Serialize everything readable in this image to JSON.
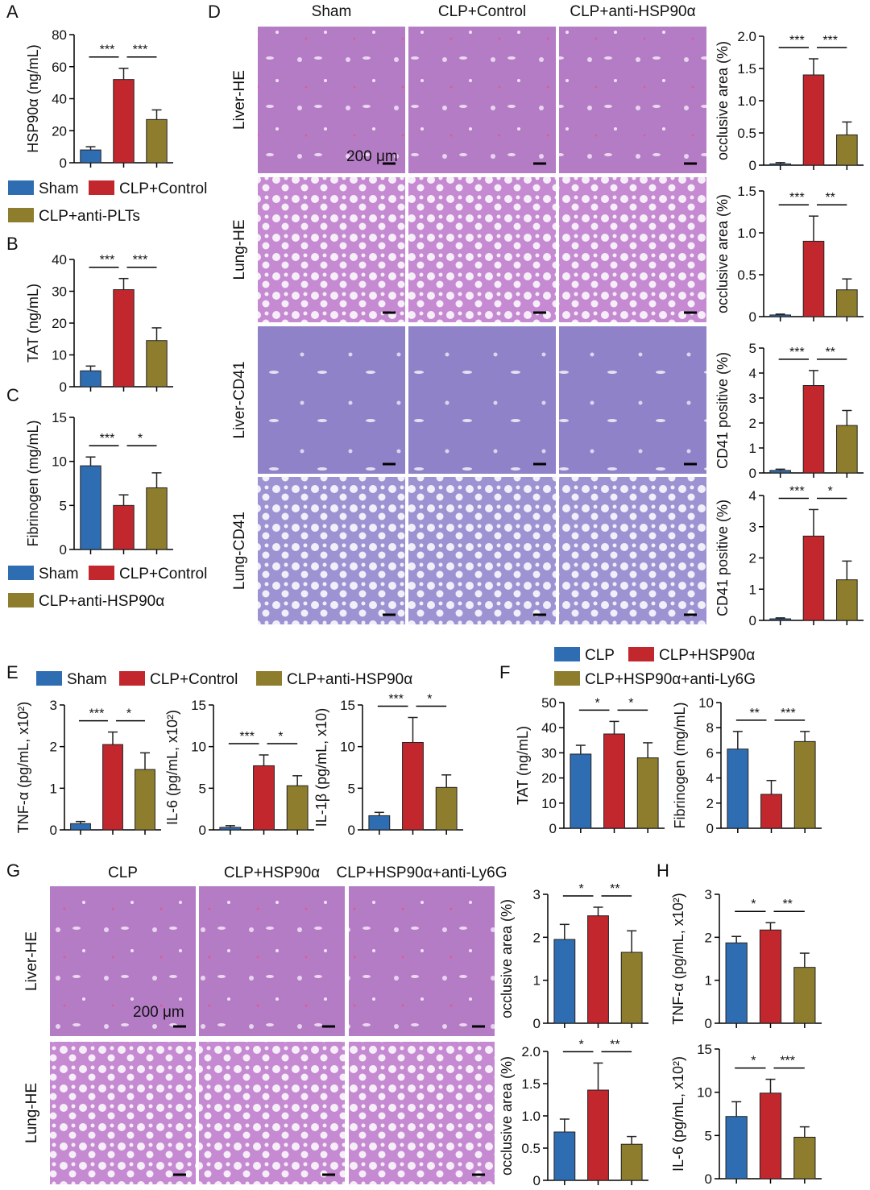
{
  "panel_letters": [
    "A",
    "B",
    "C",
    "D",
    "E",
    "F",
    "G",
    "H"
  ],
  "legends": [
    {
      "entries": [
        {
          "name": "Sham",
          "color": "#2f6db3"
        },
        {
          "name": "CLP+Control",
          "color": "#c1272d"
        },
        {
          "name": "CLP+anti-PLTs",
          "color": "#8d7d2c"
        }
      ]
    },
    {
      "entries": [
        {
          "name": "Sham",
          "color": "#2f6db3"
        },
        {
          "name": "CLP+Control",
          "color": "#c1272d"
        },
        {
          "name": "CLP+anti-HSP90α",
          "color": "#8d7d2c"
        }
      ]
    },
    {
      "entries": [
        {
          "name": "Sham",
          "color": "#2f6db3"
        },
        {
          "name": "CLP+Control",
          "color": "#c1272d"
        },
        {
          "name": "CLP+anti-HSP90α",
          "color": "#8d7d2c"
        }
      ]
    },
    {
      "entries": [
        {
          "name": "CLP",
          "color": "#2f6db3"
        },
        {
          "name": "CLP+HSP90α",
          "color": "#c1272d"
        },
        {
          "name": "CLP+HSP90α+anti-Ly6G",
          "color": "#8d7d2c"
        }
      ]
    }
  ],
  "images": [
    {
      "columns": [
        "Sham",
        "CLP+Control",
        "CLP+anti-HSP90α"
      ],
      "rows": [
        "Liver-HE",
        "Lung-HE",
        "Liver-CD41",
        "Lung-CD41"
      ],
      "scale_bar": "200 μm"
    },
    {
      "columns": [
        "CLP",
        "CLP+HSP90α",
        "CLP+HSP90α+anti-Ly6G"
      ],
      "rows": [
        "Liver-HE",
        "Lung-HE"
      ],
      "scale_bar": "200 μm"
    }
  ],
  "chart_data": [
    {
      "type": "bar",
      "ylabel": "HSP90α (ng/mL)",
      "ylim": [
        0,
        80
      ],
      "yticks": [
        0,
        20,
        40,
        60,
        80
      ],
      "categories": [
        null,
        null,
        null
      ],
      "values": [
        8,
        52,
        27
      ],
      "errors": [
        2,
        7,
        6
      ],
      "colors": [
        "#2f6db3",
        "#c1272d",
        "#8d7d2c"
      ],
      "significance": [
        "***",
        "***"
      ]
    },
    {
      "type": "bar",
      "ylabel": "TAT (ng/mL)",
      "ylim": [
        0,
        40
      ],
      "yticks": [
        0,
        10,
        20,
        30,
        40
      ],
      "categories": [
        null,
        null,
        null
      ],
      "values": [
        5,
        30.5,
        14.5
      ],
      "errors": [
        1.5,
        3.5,
        4
      ],
      "colors": [
        "#2f6db3",
        "#c1272d",
        "#8d7d2c"
      ],
      "significance": [
        "***",
        "***"
      ]
    },
    {
      "type": "bar",
      "ylabel": "Fibrinogen (mg/mL)",
      "ylim": [
        0,
        15
      ],
      "yticks": [
        0,
        5,
        10,
        15
      ],
      "categories": [
        null,
        null,
        null
      ],
      "values": [
        9.5,
        5,
        7
      ],
      "errors": [
        1,
        1.2,
        1.7
      ],
      "colors": [
        "#2f6db3",
        "#c1272d",
        "#8d7d2c"
      ],
      "significance": [
        "***",
        "*"
      ]
    },
    {
      "type": "bar",
      "ylabel": "occlusive area (%)",
      "ylim": [
        0,
        2
      ],
      "yticks": [
        0,
        0.5,
        {
          "value": 1,
          "label": "1.0"
        },
        1.5,
        {
          "value": 2,
          "label": "2.0"
        }
      ],
      "categories": [
        null,
        null,
        null
      ],
      "values": [
        0.02,
        1.4,
        0.47
      ],
      "errors": [
        0.02,
        0.25,
        0.2
      ],
      "colors": [
        "#2f6db3",
        "#c1272d",
        "#8d7d2c"
      ],
      "significance": [
        "***",
        "***"
      ]
    },
    {
      "type": "bar",
      "ylabel": "occlusive area (%)",
      "ylim": [
        0,
        1.5
      ],
      "yticks": [
        0,
        0.5,
        {
          "value": 1,
          "label": "1.0"
        },
        1.5
      ],
      "categories": [
        null,
        null,
        null
      ],
      "values": [
        0.02,
        0.9,
        0.32
      ],
      "errors": [
        0.01,
        0.3,
        0.13
      ],
      "colors": [
        "#2f6db3",
        "#c1272d",
        "#8d7d2c"
      ],
      "significance": [
        "***",
        "**"
      ]
    },
    {
      "type": "bar",
      "ylabel": "CD41 positive (%)",
      "ylim": [
        0,
        5
      ],
      "yticks": [
        0,
        1,
        2,
        3,
        4,
        5
      ],
      "categories": [
        null,
        null,
        null
      ],
      "values": [
        0.1,
        3.5,
        1.9
      ],
      "errors": [
        0.05,
        0.6,
        0.6
      ],
      "colors": [
        "#2f6db3",
        "#c1272d",
        "#8d7d2c"
      ],
      "significance": [
        "***",
        "**"
      ]
    },
    {
      "type": "bar",
      "ylabel": "CD41 positive (%)",
      "ylim": [
        0,
        4
      ],
      "yticks": [
        0,
        1,
        2,
        3,
        4
      ],
      "categories": [
        null,
        null,
        null
      ],
      "values": [
        0.05,
        2.7,
        1.3
      ],
      "errors": [
        0.03,
        0.85,
        0.6
      ],
      "colors": [
        "#2f6db3",
        "#c1272d",
        "#8d7d2c"
      ],
      "significance": [
        "***",
        "*"
      ]
    },
    {
      "type": "bar",
      "ylabel": "TNF-α (pg/mL, x10²)",
      "ylim": [
        0,
        3
      ],
      "yticks": [
        0,
        1,
        2,
        3
      ],
      "categories": [
        null,
        null,
        null
      ],
      "values": [
        0.15,
        2.05,
        1.45
      ],
      "errors": [
        0.05,
        0.3,
        0.4
      ],
      "colors": [
        "#2f6db3",
        "#c1272d",
        "#8d7d2c"
      ],
      "significance": [
        "***",
        "*"
      ]
    },
    {
      "type": "bar",
      "ylabel": "IL-6 (pg/mL, x10²)",
      "ylim": [
        0,
        15
      ],
      "yticks": [
        0,
        5,
        10,
        15
      ],
      "categories": [
        null,
        null,
        null
      ],
      "values": [
        0.3,
        7.7,
        5.3
      ],
      "errors": [
        0.2,
        1.3,
        1.2
      ],
      "colors": [
        "#2f6db3",
        "#c1272d",
        "#8d7d2c"
      ],
      "significance": [
        "***",
        "*"
      ]
    },
    {
      "type": "bar",
      "ylabel": "IL-1β (pg/mL, x10)",
      "ylim": [
        0,
        15
      ],
      "yticks": [
        0,
        5,
        10,
        15
      ],
      "categories": [
        null,
        null,
        null
      ],
      "values": [
        1.7,
        10.5,
        5.1
      ],
      "errors": [
        0.4,
        3,
        1.5
      ],
      "colors": [
        "#2f6db3",
        "#c1272d",
        "#8d7d2c"
      ],
      "significance": [
        "***",
        "*"
      ]
    },
    {
      "type": "bar",
      "ylabel": "TAT (ng/mL)",
      "ylim": [
        0,
        50
      ],
      "yticks": [
        0,
        10,
        20,
        30,
        40,
        50
      ],
      "categories": [
        null,
        null,
        null
      ],
      "values": [
        29.5,
        37.5,
        28
      ],
      "errors": [
        3.5,
        5,
        6
      ],
      "colors": [
        "#2f6db3",
        "#c1272d",
        "#8d7d2c"
      ],
      "significance": [
        "*",
        "*"
      ]
    },
    {
      "type": "bar",
      "ylabel": "Fibrinogen (mg/mL)",
      "ylim": [
        0,
        10
      ],
      "yticks": [
        0,
        2,
        4,
        6,
        8,
        10
      ],
      "categories": [
        null,
        null,
        null
      ],
      "values": [
        6.3,
        2.7,
        6.9
      ],
      "errors": [
        1.4,
        1.1,
        0.8
      ],
      "colors": [
        "#2f6db3",
        "#c1272d",
        "#8d7d2c"
      ],
      "significance": [
        "**",
        "***"
      ]
    },
    {
      "type": "bar",
      "ylabel": "occlusive area (%)",
      "ylim": [
        0,
        3
      ],
      "yticks": [
        0,
        1,
        2,
        3
      ],
      "categories": [
        null,
        null,
        null
      ],
      "values": [
        1.95,
        2.5,
        1.65
      ],
      "errors": [
        0.35,
        0.2,
        0.5
      ],
      "colors": [
        "#2f6db3",
        "#c1272d",
        "#8d7d2c"
      ],
      "significance": [
        "*",
        "**"
      ]
    },
    {
      "type": "bar",
      "ylabel": "occlusive area (%)",
      "ylim": [
        0,
        2
      ],
      "yticks": [
        0,
        0.5,
        {
          "value": 1,
          "label": "1.0"
        },
        1.5,
        {
          "value": 2,
          "label": "2.0"
        }
      ],
      "categories": [
        null,
        null,
        null
      ],
      "values": [
        0.75,
        1.4,
        0.56
      ],
      "errors": [
        0.2,
        0.42,
        0.12
      ],
      "colors": [
        "#2f6db3",
        "#c1272d",
        "#8d7d2c"
      ],
      "significance": [
        "*",
        "**"
      ]
    },
    {
      "type": "bar",
      "ylabel": "TNF-α (pg/mL, x10²)",
      "ylim": [
        0,
        3
      ],
      "yticks": [
        0,
        1,
        2,
        3
      ],
      "categories": [
        null,
        null,
        null
      ],
      "values": [
        1.87,
        2.17,
        1.3
      ],
      "errors": [
        0.15,
        0.17,
        0.33
      ],
      "colors": [
        "#2f6db3",
        "#c1272d",
        "#8d7d2c"
      ],
      "significance": [
        "*",
        "**"
      ]
    },
    {
      "type": "bar",
      "ylabel": "IL-6 (pg/mL, x10²)",
      "ylim": [
        0,
        15
      ],
      "yticks": [
        0,
        5,
        10,
        15
      ],
      "categories": [
        null,
        null,
        null
      ],
      "values": [
        7.2,
        9.9,
        4.8
      ],
      "errors": [
        1.7,
        1.6,
        1.2
      ],
      "colors": [
        "#2f6db3",
        "#c1272d",
        "#8d7d2c"
      ],
      "significance": [
        "*",
        "***"
      ]
    }
  ]
}
